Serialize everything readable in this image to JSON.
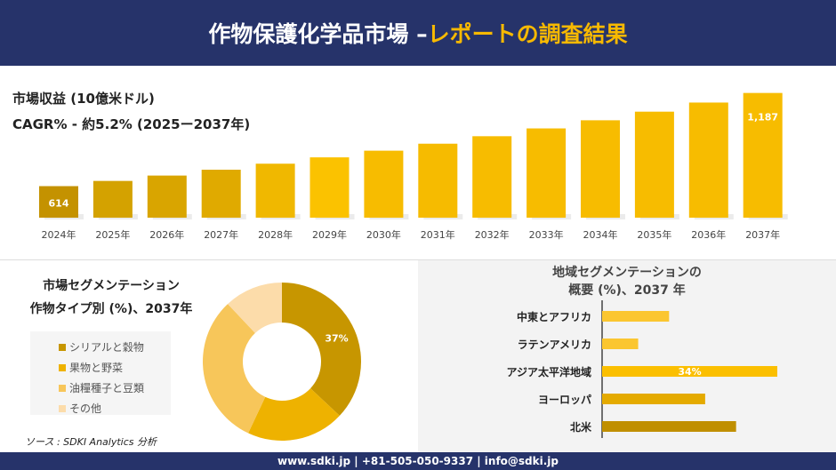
{
  "header": {
    "title_main": "作物保護化学品市場 –",
    "title_accent": "レポートの調査結果"
  },
  "colors": {
    "navy": "#26336a",
    "accent": "#f7b900"
  },
  "chart_data": [
    {
      "type": "bar",
      "title": "市場収益 (10億米ドル)",
      "subtitle": "CAGR% - 約5.2% (2025ー2037年)",
      "categories": [
        "2024年",
        "2025年",
        "2026年",
        "2027年",
        "2028年",
        "2029年",
        "2030年",
        "2031年",
        "2032年",
        "2033年",
        "2034年",
        "2035年",
        "2036年",
        "2037年"
      ],
      "values": [
        614,
        646,
        679,
        715,
        752,
        791,
        832,
        875,
        921,
        969,
        1019,
        1072,
        1128,
        1187
      ],
      "data_labels": {
        "0": "614",
        "13": "1,187"
      },
      "grid": false
    },
    {
      "type": "pie",
      "variant": "donut",
      "title_line1": "市場セグメンテーション",
      "title_line2": "作物タイプ別 (%)、2037年",
      "labels": [
        "シリアルと穀物",
        "果物と野菜",
        "油糧種子と豆類",
        "その他"
      ],
      "values": [
        37,
        20,
        31,
        12
      ],
      "colors": [
        "#c79600",
        "#eeb200",
        "#f7c65a",
        "#fcdcaa"
      ],
      "data_labels": {
        "0": "37%"
      },
      "legend": "left"
    },
    {
      "type": "bar",
      "orientation": "horizontal",
      "title_line1": "地域セグメンテーションの",
      "title_line2": "概要 (%)、2037 年",
      "categories": [
        "中東とアフリカ",
        "ラテンアメリカ",
        "アジア太平洋地域",
        "ヨーロッパ",
        "北米"
      ],
      "values": [
        13,
        7,
        34,
        20,
        26
      ],
      "colors": [
        "#fbc630",
        "#fbc630",
        "#fbbf00",
        "#e4aa00",
        "#c08f00"
      ],
      "data_labels": {
        "2": "34%"
      }
    }
  ],
  "source": "ソース : SDKI Analytics 分析",
  "footer": "www.sdki.jp | +81-505-050-9337 | info@sdki.jp"
}
